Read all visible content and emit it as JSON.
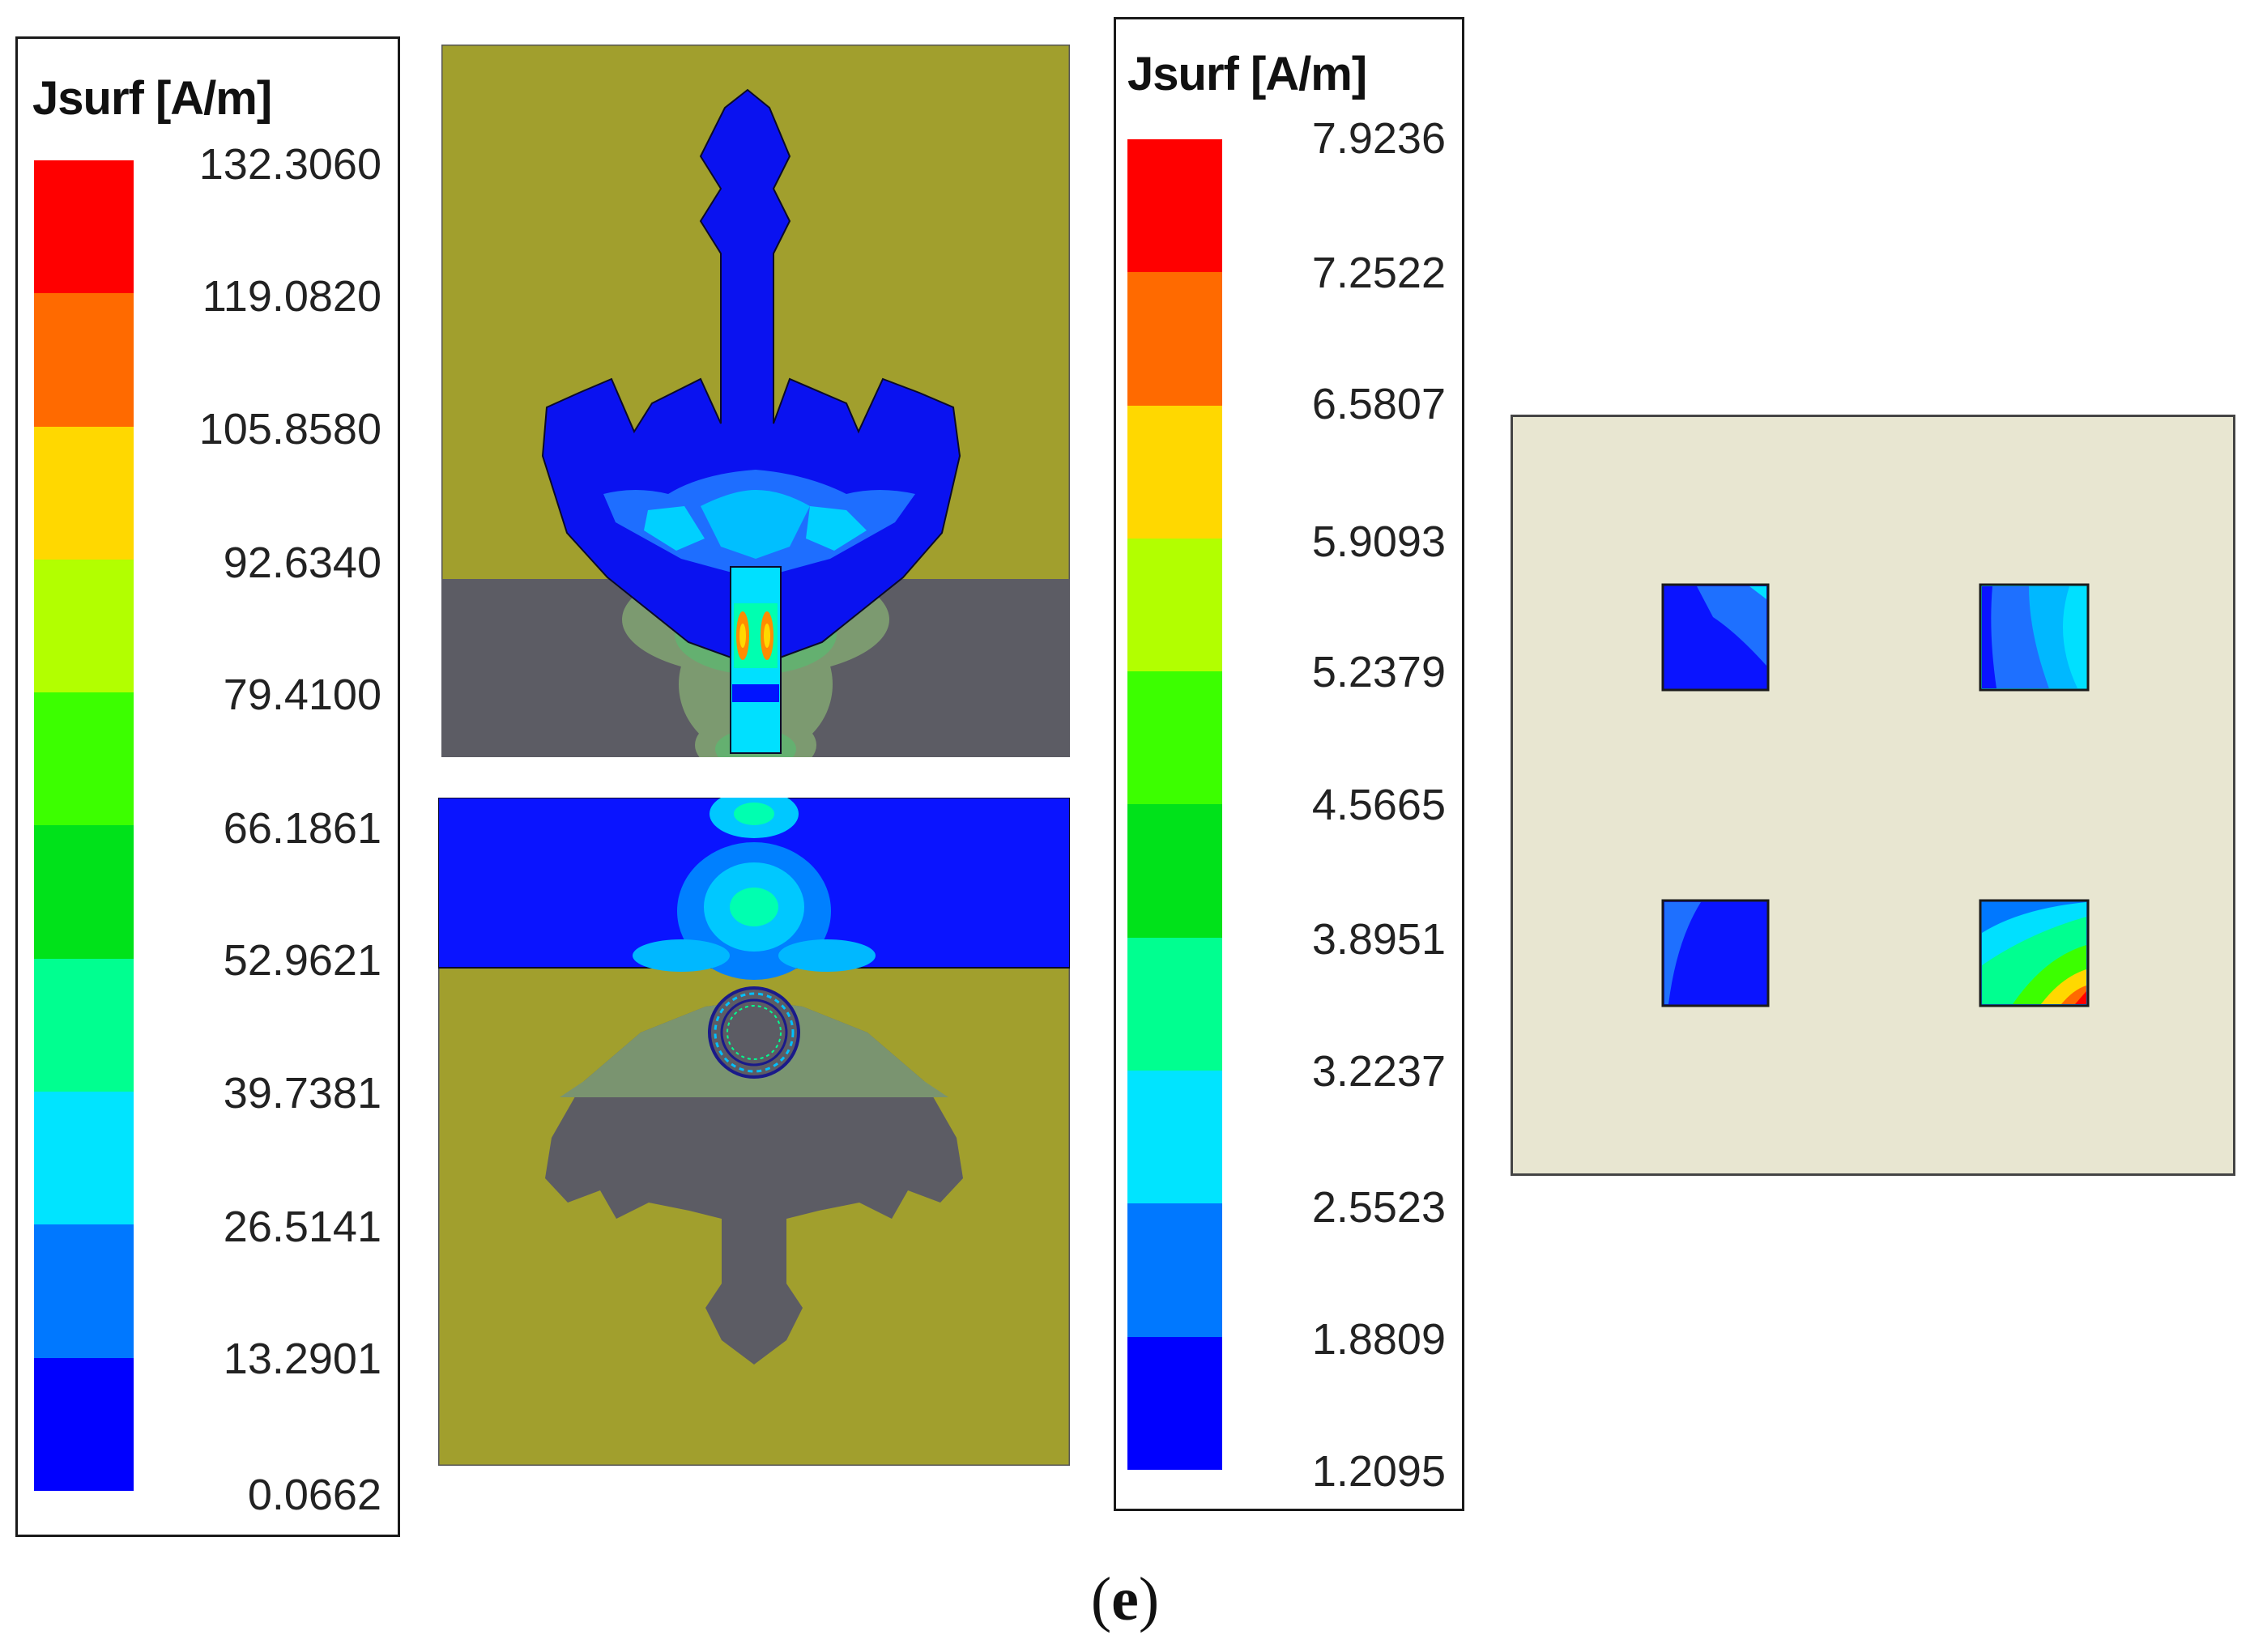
{
  "legends": [
    {
      "title": "Jsurf [A/m]",
      "labels": [
        "132.3060",
        "119.0820",
        "105.8580",
        "92.6340",
        "79.4100",
        "66.1861",
        "52.9621",
        "39.7381",
        "26.5141",
        "13.2901",
        "0.0662"
      ]
    },
    {
      "title": "Jsurf [A/m]",
      "labels": [
        "7.9236",
        "7.2522",
        "6.5807",
        "5.9093",
        "5.2379",
        "4.5665",
        "3.8951",
        "3.2237",
        "2.5523",
        "1.8809",
        "1.2095"
      ]
    }
  ],
  "colormap": [
    "#ff0000",
    "#ff6a00",
    "#ffd800",
    "#b2ff00",
    "#3cff00",
    "#00e21a",
    "#00ff90",
    "#00e4ff",
    "#0078ff",
    "#0000ff"
  ],
  "colors": {
    "substrate": "#a19f2d",
    "ground": "#5c5c64",
    "back_plate": "#e8e6d1",
    "patch_blue": "#0026ff"
  },
  "caption": {
    "open": "(",
    "letter": "e",
    "close": ")"
  }
}
